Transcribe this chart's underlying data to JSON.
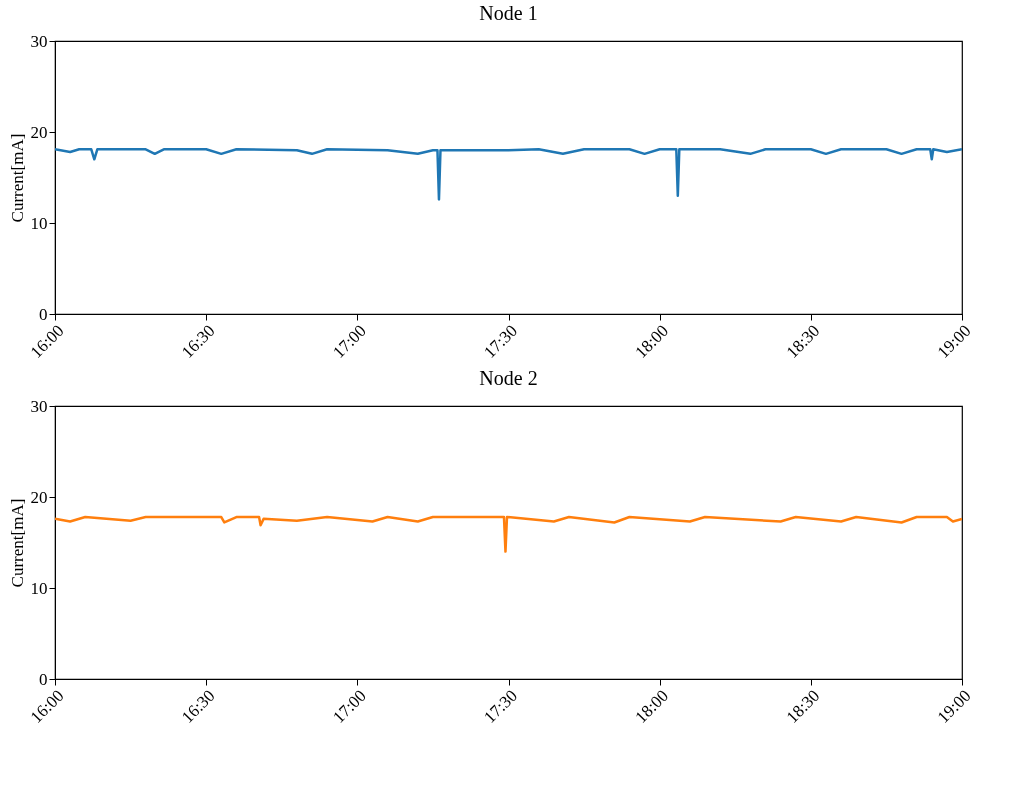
{
  "chart_data": [
    {
      "type": "line",
      "title": "Node 1",
      "ylabel": "Current[mA]",
      "xlim": [
        16,
        19
      ],
      "ylim": [
        0,
        30
      ],
      "grid": false,
      "xticks": [
        {
          "value": 16,
          "label": "16:00"
        },
        {
          "value": 16.5,
          "label": "16:30"
        },
        {
          "value": 17,
          "label": "17:00"
        },
        {
          "value": 17.5,
          "label": "17:30"
        },
        {
          "value": 18,
          "label": "18:00"
        },
        {
          "value": 18.5,
          "label": "18:30"
        },
        {
          "value": 19,
          "label": "19:00"
        }
      ],
      "yticks": [
        0,
        10,
        20,
        30
      ],
      "x": [
        16.0,
        16.05,
        16.08,
        16.12,
        16.13,
        16.14,
        16.3,
        16.33,
        16.36,
        16.5,
        16.55,
        16.6,
        16.8,
        16.85,
        16.9,
        17.1,
        17.2,
        17.25,
        17.265,
        17.27,
        17.275,
        17.4,
        17.5,
        17.6,
        17.68,
        17.75,
        17.9,
        17.95,
        18.0,
        18.055,
        18.06,
        18.065,
        18.2,
        18.3,
        18.35,
        18.5,
        18.55,
        18.6,
        18.75,
        18.8,
        18.85,
        18.895,
        18.9,
        18.905,
        18.95,
        19.0
      ],
      "series": [
        {
          "color": "#1f77b4",
          "values": [
            18.1,
            17.8,
            18.1,
            18.1,
            17.0,
            18.1,
            18.1,
            17.6,
            18.1,
            18.1,
            17.6,
            18.1,
            18.0,
            17.6,
            18.1,
            18.0,
            17.6,
            18.0,
            18.0,
            12.6,
            18.0,
            18.0,
            18.0,
            18.1,
            17.6,
            18.1,
            18.1,
            17.6,
            18.1,
            18.1,
            13.0,
            18.1,
            18.1,
            17.6,
            18.1,
            18.1,
            17.6,
            18.1,
            18.1,
            17.6,
            18.1,
            18.1,
            17.0,
            18.1,
            17.8,
            18.1
          ]
        }
      ]
    },
    {
      "type": "line",
      "title": "Node 2",
      "ylabel": "Current[mA]",
      "xlim": [
        16,
        19
      ],
      "ylim": [
        0,
        30
      ],
      "grid": false,
      "xticks": [
        {
          "value": 16,
          "label": "16:00"
        },
        {
          "value": 16.5,
          "label": "16:30"
        },
        {
          "value": 17,
          "label": "17:00"
        },
        {
          "value": 17.5,
          "label": "17:30"
        },
        {
          "value": 18,
          "label": "18:00"
        },
        {
          "value": 18.5,
          "label": "18:30"
        },
        {
          "value": 19,
          "label": "19:00"
        }
      ],
      "yticks": [
        0,
        10,
        20,
        30
      ],
      "x": [
        16.0,
        16.05,
        16.1,
        16.25,
        16.3,
        16.55,
        16.56,
        16.6,
        16.675,
        16.68,
        16.69,
        16.8,
        16.9,
        17.05,
        17.1,
        17.2,
        17.25,
        17.485,
        17.49,
        17.495,
        17.65,
        17.7,
        17.85,
        17.9,
        18.1,
        18.15,
        18.4,
        18.45,
        18.6,
        18.65,
        18.8,
        18.85,
        18.95,
        18.97,
        19.0
      ],
      "series": [
        {
          "color": "#ff7f0e",
          "values": [
            17.6,
            17.3,
            17.8,
            17.4,
            17.8,
            17.8,
            17.2,
            17.8,
            17.8,
            16.9,
            17.6,
            17.4,
            17.8,
            17.3,
            17.8,
            17.3,
            17.8,
            17.8,
            14.0,
            17.8,
            17.3,
            17.8,
            17.2,
            17.8,
            17.3,
            17.8,
            17.3,
            17.8,
            17.3,
            17.8,
            17.2,
            17.8,
            17.8,
            17.3,
            17.6
          ]
        }
      ]
    }
  ]
}
